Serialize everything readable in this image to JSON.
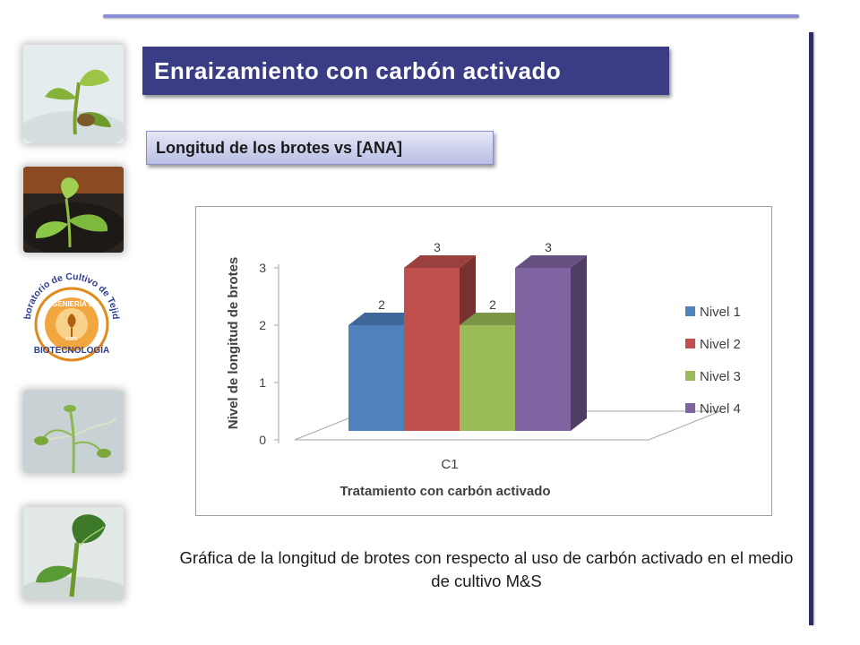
{
  "slide": {
    "title": "Enraizamiento con carbón activado",
    "subtitle": "Longitud de los brotes vs [ANA]",
    "caption": "Gráfica de la longitud de brotes con respecto al uso de carbón activado en el medio de cultivo M&S"
  },
  "logo": {
    "arc_text": "Laboratorio de Cultivo de Tejidos",
    "inner_top": "INGENIERÍA EN",
    "inner_bottom": "BIOTECNOLOGÍA",
    "seal": "ESPE"
  },
  "colors": {
    "title_bg": "#3a3d86",
    "accent_rule": "#8a8fd6"
  },
  "chart_data": {
    "type": "bar",
    "three_d": true,
    "categories": [
      "C1"
    ],
    "series": [
      {
        "name": "Nivel 1",
        "values": [
          2
        ],
        "color": "#4f81bd"
      },
      {
        "name": "Nivel 2",
        "values": [
          3
        ],
        "color": "#c0504d"
      },
      {
        "name": "Nivel 3",
        "values": [
          2
        ],
        "color": "#9bbb59"
      },
      {
        "name": "Nivel 4",
        "values": [
          3
        ],
        "color": "#8064a2"
      }
    ],
    "data_labels": [
      "2",
      "3",
      "2",
      "3"
    ],
    "xlabel": "Tratamiento con carbón activado",
    "ylabel": "Nivel de longitud de brotes",
    "ylim": [
      0,
      3
    ],
    "yticks": [
      "0",
      "1",
      "2",
      "3"
    ],
    "grid": false,
    "legend": "right"
  }
}
